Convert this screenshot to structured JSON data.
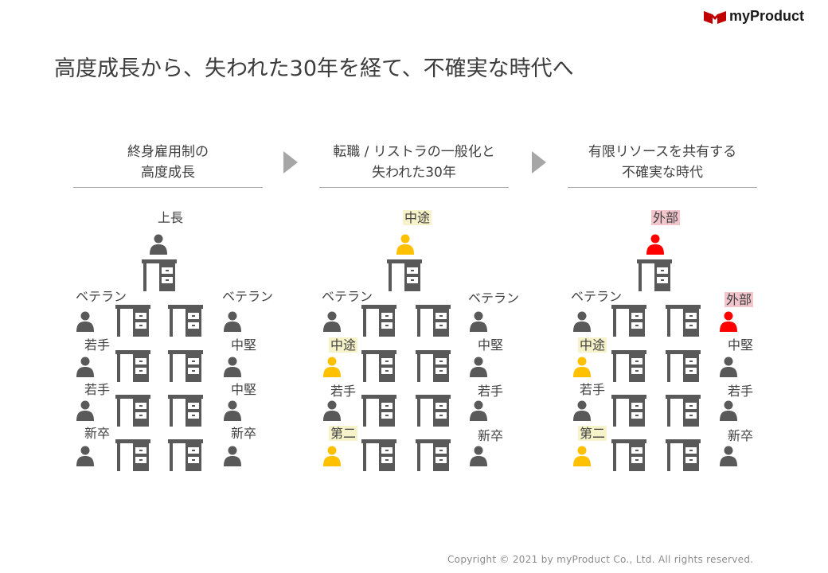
{
  "brand": {
    "name": "myProduct"
  },
  "title": "高度成長から、失われた30年を経て、不確実な時代へ",
  "colors": {
    "person_default": "#595959",
    "person_midcareer": "#ffc000",
    "person_external": "#ff0000",
    "desk": "#595959",
    "arrow": "#a6a6a6"
  },
  "columns": [
    {
      "heading": [
        "終身雇用制の",
        "高度成長"
      ],
      "top_label": "上長",
      "left_labels": [
        "ベテラン",
        "若手",
        "若手",
        "新卒"
      ],
      "right_labels": [
        "ベテラン",
        "中堅",
        "中堅",
        "新卒"
      ]
    },
    {
      "heading": [
        "転職 / リストラの一般化と",
        "失われた30年"
      ],
      "top_label": "中途",
      "left_labels": [
        "ベテラン",
        "中途",
        "若手",
        "第二"
      ],
      "right_labels": [
        "ベテラン",
        "中堅",
        "若手",
        "新卒"
      ]
    },
    {
      "heading": [
        "有限リソースを共有する",
        "不確実な時代"
      ],
      "top_label": "外部",
      "left_labels": [
        "ベテラン",
        "中途",
        "若手",
        "第二"
      ],
      "right_labels": [
        "外部",
        "中堅",
        "若手",
        "新卒"
      ]
    }
  ],
  "footer": "Copyright © 2021 by myProduct Co., Ltd.  All rights reserved."
}
